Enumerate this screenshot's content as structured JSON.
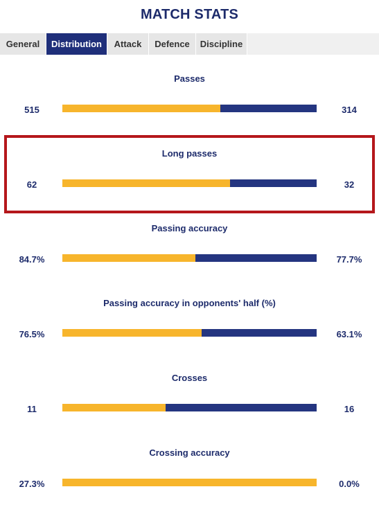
{
  "title": "MATCH STATS",
  "tabs": [
    {
      "label": "General",
      "active": false
    },
    {
      "label": "Distribution",
      "active": true
    },
    {
      "label": "Attack",
      "active": false
    },
    {
      "label": "Defence",
      "active": false
    },
    {
      "label": "Discipline",
      "active": false
    }
  ],
  "colors": {
    "home": "#f7b52c",
    "away": "#243580",
    "highlight": "#b5171b",
    "active_tab": "#1f2f7a"
  },
  "stats": [
    {
      "label": "Passes",
      "home": "515",
      "away": "314",
      "home_share": 0.621
    },
    {
      "label": "Long passes",
      "home": "62",
      "away": "32",
      "home_share": 0.66,
      "highlighted": true
    },
    {
      "label": "Passing accuracy",
      "home": "84.7%",
      "away": "77.7%",
      "home_share": 0.522
    },
    {
      "label": "Passing accuracy in opponents' half (%)",
      "home": "76.5%",
      "away": "63.1%",
      "home_share": 0.548
    },
    {
      "label": "Crosses",
      "home": "11",
      "away": "16",
      "home_share": 0.407
    },
    {
      "label": "Crossing accuracy",
      "home": "27.3%",
      "away": "0.0%",
      "home_share": 1.0
    }
  ]
}
